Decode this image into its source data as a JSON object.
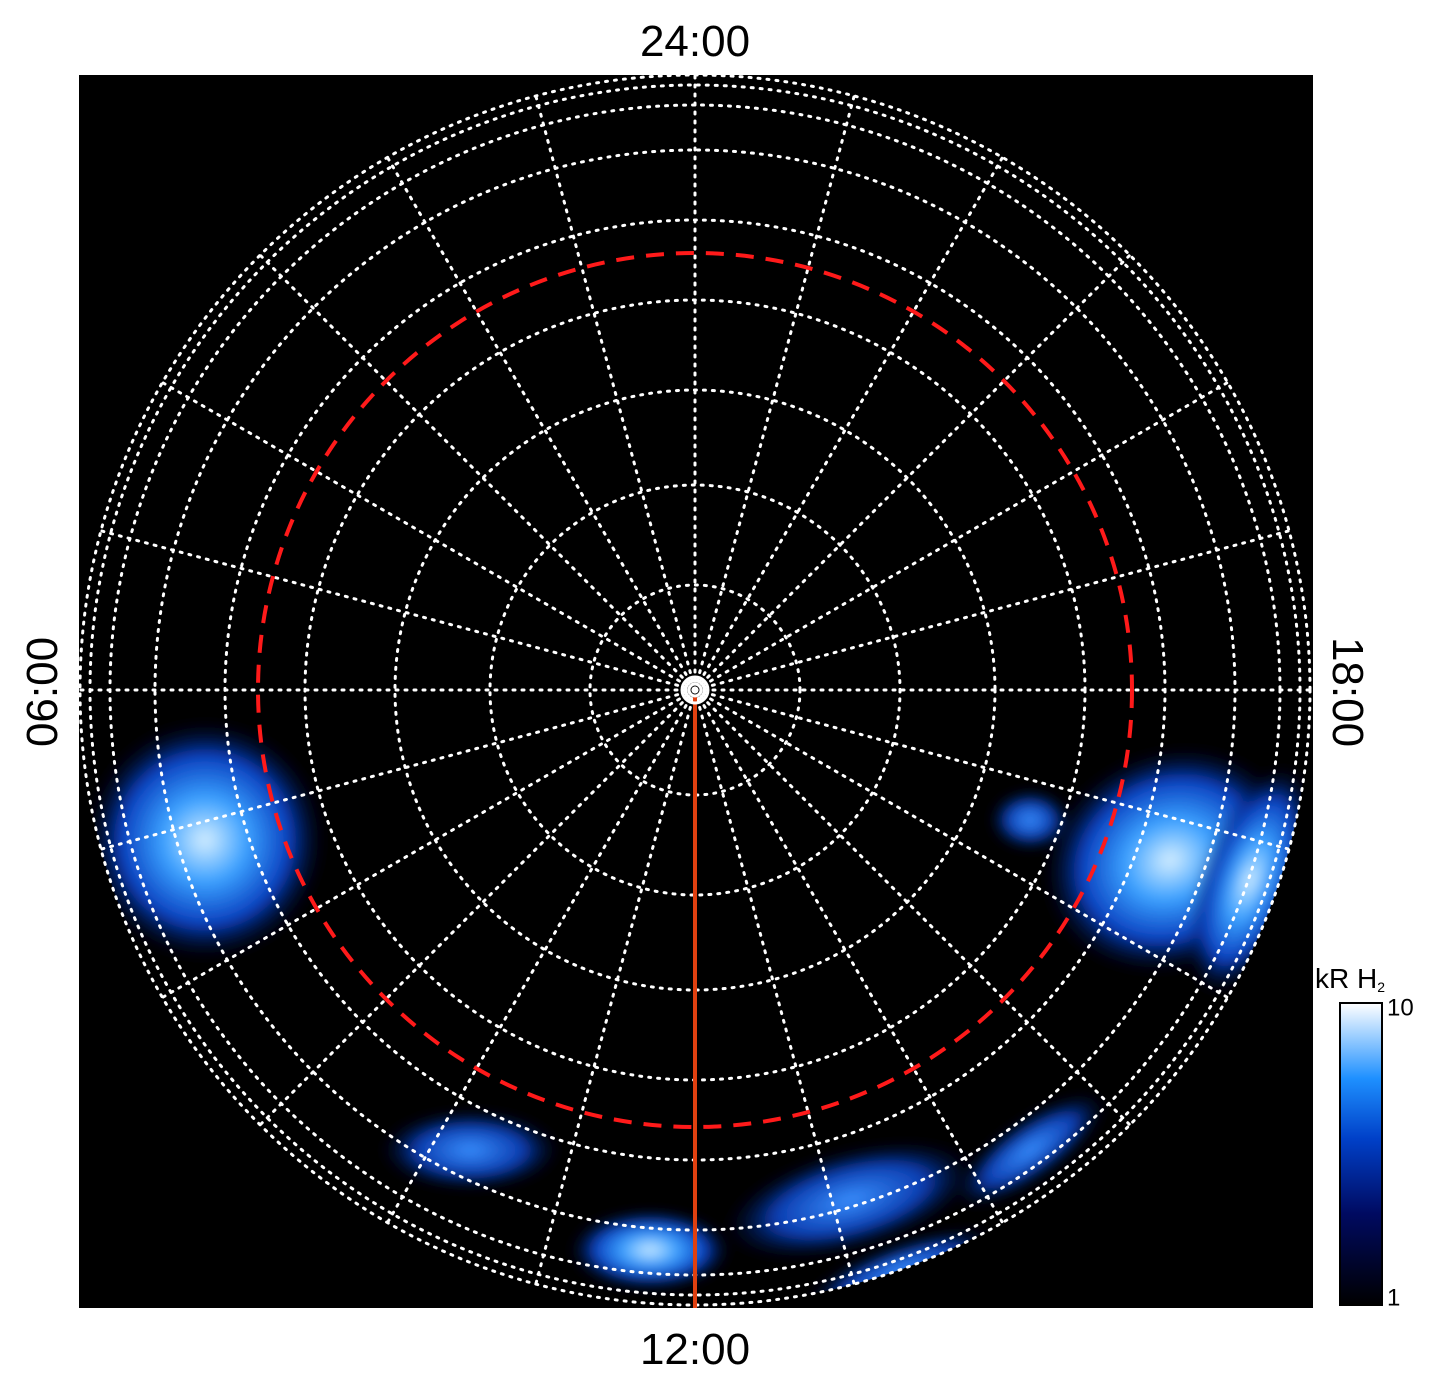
{
  "plot": {
    "local_time_labels": {
      "top": "24:00",
      "bottom": "12:00",
      "left": "06:00",
      "right": "18:00"
    },
    "colorbar": {
      "label": "kR H",
      "label_subscript": "2",
      "lim": [
        1,
        10
      ],
      "ticks": [
        1,
        10
      ],
      "log": true
    }
  }
}
